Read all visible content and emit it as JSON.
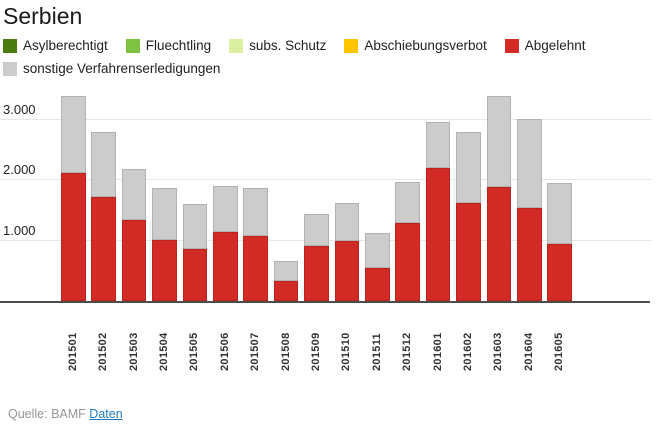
{
  "header": {
    "title": "Serbien"
  },
  "legend": {
    "items": [
      {
        "key": "asylberechtigt",
        "label": "Asylberechtigt",
        "color": "#4c7c0f"
      },
      {
        "key": "fluechtling",
        "label": "Fluechtling",
        "color": "#7fc241"
      },
      {
        "key": "subs-schutz",
        "label": "subs. Schutz",
        "color": "#dcee9f"
      },
      {
        "key": "abschiebungsverbot",
        "label": "Abschiebungsverbot",
        "color": "#fcc500"
      },
      {
        "key": "abgelehnt",
        "label": "Abgelehnt",
        "color": "#d22a25"
      },
      {
        "key": "sonstige",
        "label": "sonstige Verfahrenserledigungen",
        "color": "#cccccc"
      }
    ]
  },
  "footer": {
    "source_prefix": "Quelle: BAMF",
    "link_label": "Daten"
  },
  "chart_data": {
    "type": "bar",
    "stacked": true,
    "title": "Serbien",
    "grid": "horizontal",
    "legend_position": "top",
    "ylim": [
      0,
      3500
    ],
    "yticks": [
      {
        "value": 1000,
        "label": "1.000"
      },
      {
        "value": 2000,
        "label": "2.000"
      },
      {
        "value": 3000,
        "label": "3.000"
      }
    ],
    "categories": [
      "201501",
      "201502",
      "201503",
      "201504",
      "201505",
      "201506",
      "201507",
      "201508",
      "201509",
      "201510",
      "201511",
      "201512",
      "201601",
      "201602",
      "201603",
      "201604",
      "201605"
    ],
    "series": [
      {
        "key": "asylberechtigt",
        "name": "Asylberechtigt",
        "color": "#4c7c0f",
        "border": "#41690d",
        "values": [
          0,
          0,
          0,
          0,
          0,
          0,
          0,
          0,
          0,
          0,
          0,
          0,
          0,
          0,
          0,
          0,
          0
        ]
      },
      {
        "key": "fluechtling",
        "name": "Fluechtling",
        "color": "#7fc241",
        "border": "#6ea838",
        "values": [
          0,
          0,
          0,
          0,
          0,
          0,
          0,
          0,
          0,
          0,
          0,
          0,
          0,
          0,
          0,
          0,
          0
        ]
      },
      {
        "key": "subs-schutz",
        "name": "subs. Schutz",
        "color": "#dcee9f",
        "border": "#c4d68c",
        "values": [
          0,
          0,
          0,
          0,
          0,
          0,
          0,
          0,
          0,
          0,
          0,
          0,
          0,
          0,
          0,
          0,
          0
        ]
      },
      {
        "key": "abschiebungsverbot",
        "name": "Abschiebungsverbot",
        "color": "#fcc500",
        "border": "#dfae00",
        "values": [
          0,
          0,
          0,
          0,
          0,
          0,
          0,
          0,
          0,
          0,
          0,
          0,
          0,
          0,
          0,
          0,
          0
        ]
      },
      {
        "key": "abgelehnt",
        "name": "Abgelehnt",
        "color": "#d22a25",
        "border": "#bb231f",
        "values": [
          2130,
          1730,
          1340,
          1020,
          870,
          1140,
          1070,
          330,
          910,
          1000,
          550,
          1300,
          2200,
          1630,
          1890,
          1550,
          940
        ]
      },
      {
        "key": "sonstige",
        "name": "sonstige Verfahrenserledigungen",
        "color": "#cccccc",
        "border": "#b2b2b2",
        "values": [
          1270,
          1070,
          850,
          860,
          740,
          760,
          800,
          330,
          540,
          620,
          570,
          670,
          770,
          1180,
          1510,
          1470,
          1010
        ]
      }
    ]
  }
}
